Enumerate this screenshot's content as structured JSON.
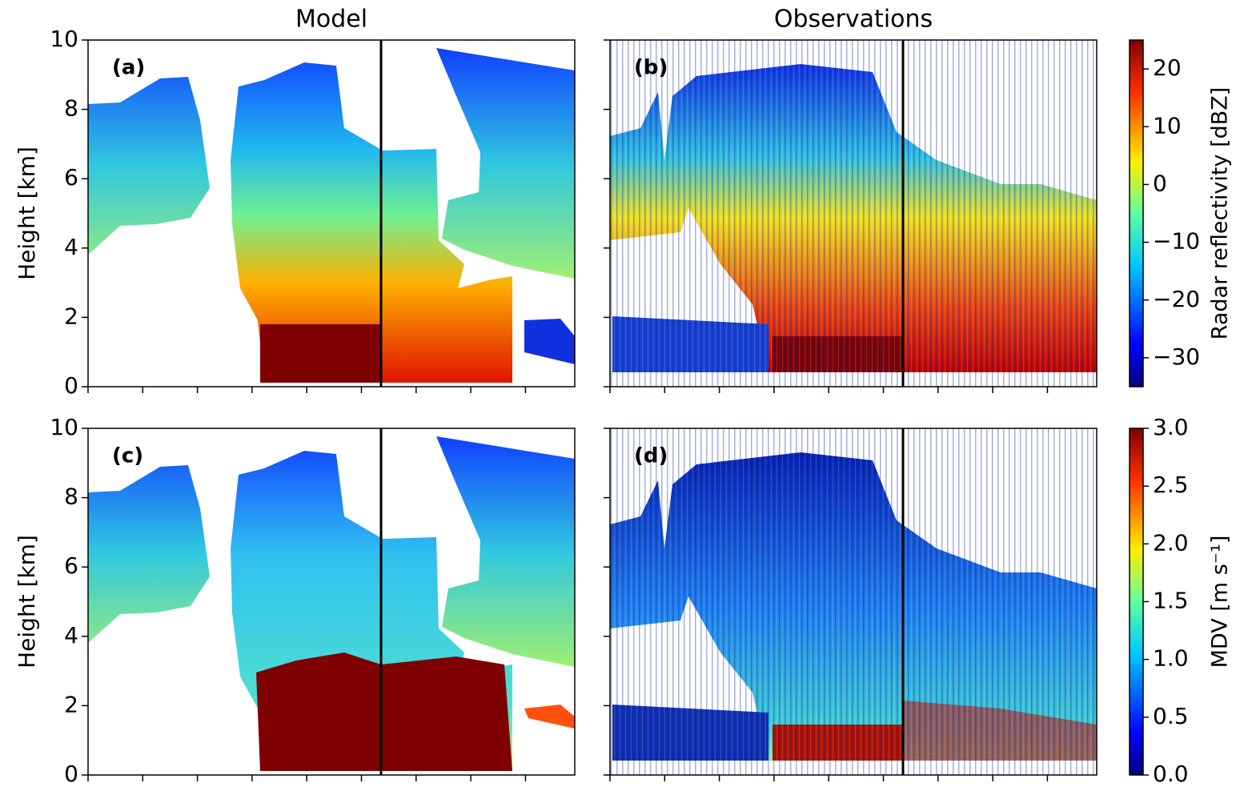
{
  "chart_data": [
    {
      "type": "heatmap",
      "title": "Model",
      "panel_label": "(a)",
      "ylabel": "Height   [km]",
      "ylim": [
        0,
        10
      ],
      "yticks": [
        0,
        2,
        4,
        6,
        8,
        10
      ]
    },
    {
      "type": "heatmap",
      "title": "Observations",
      "panel_label": "(b)",
      "ylim": [
        0,
        10
      ],
      "colorbar": {
        "label": "Radar reflectivity   [dBZ]",
        "lim": [
          -35,
          25
        ],
        "ticks": [
          {
            "value": -30,
            "label": "−30"
          },
          {
            "value": -20,
            "label": "−20"
          },
          {
            "value": -10,
            "label": "−10"
          },
          0,
          10,
          20
        ]
      }
    },
    {
      "type": "heatmap",
      "panel_label": "(c)",
      "ylabel": "Height   [km]",
      "ylim": [
        0,
        10
      ],
      "yticks": [
        0,
        2,
        4,
        6,
        8,
        10
      ]
    },
    {
      "type": "heatmap",
      "panel_label": "(d)",
      "ylim": [
        0,
        10
      ],
      "colorbar": {
        "label": "MDV  [m s⁻¹]",
        "lim": [
          0,
          3
        ],
        "ticks": [
          {
            "value": 0,
            "label": "0.0"
          },
          0.5,
          {
            "value": 1,
            "label": "1.0"
          },
          1.5,
          {
            "value": 2,
            "label": "2.0"
          },
          2.5,
          {
            "value": 3,
            "label": "3.0"
          }
        ]
      }
    }
  ]
}
